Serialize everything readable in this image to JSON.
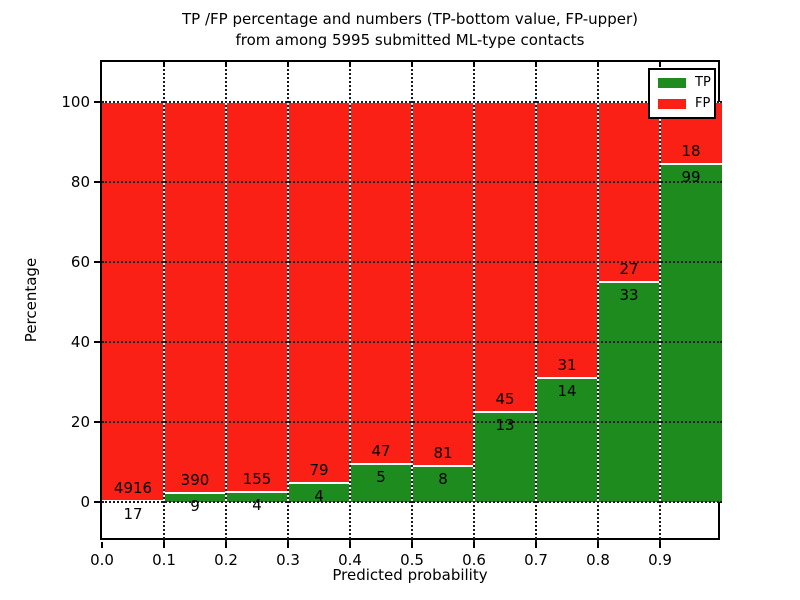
{
  "figure": {
    "title": "TP /FP percentage and numbers (TP-bottom value, FP-upper)\nfrom among 5995 submitted ML-type contacts",
    "total_contacts": 5995
  },
  "chart_data": {
    "type": "bar",
    "stacked": true,
    "normalized_to_percent": true,
    "title": "TP /FP percentage and numbers (TP-bottom value, FP-upper)\nfrom among 5995 submitted ML-type contacts",
    "xlabel": "Predicted probability",
    "ylabel": "Percentage",
    "categories": [
      "0.0-0.1",
      "0.1-0.2",
      "0.2-0.3",
      "0.3-0.4",
      "0.4-0.5",
      "0.5-0.6",
      "0.6-0.7",
      "0.7-0.8",
      "0.8-0.9",
      "0.9-1.0"
    ],
    "series": [
      {
        "name": "TP",
        "color": "#1e8b1e",
        "counts": [
          17,
          9,
          4,
          4,
          5,
          8,
          13,
          14,
          33,
          99
        ]
      },
      {
        "name": "FP",
        "color": "#fb2016",
        "counts": [
          4916,
          390,
          155,
          79,
          47,
          81,
          45,
          31,
          27,
          18
        ]
      }
    ],
    "bar_annotation_rule": "TP count below segment boundary, FP count above segment boundary",
    "xticks": [
      "0.0",
      "0.1",
      "0.2",
      "0.3",
      "0.4",
      "0.5",
      "0.6",
      "0.7",
      "0.8",
      "0.9"
    ],
    "yticks": [
      0,
      20,
      40,
      60,
      80,
      100
    ],
    "xlim": [
      0,
      1
    ],
    "ylim": [
      -10,
      110
    ],
    "grid": "dotted",
    "legend_position": "upper right",
    "legend": [
      "TP",
      "FP"
    ]
  }
}
